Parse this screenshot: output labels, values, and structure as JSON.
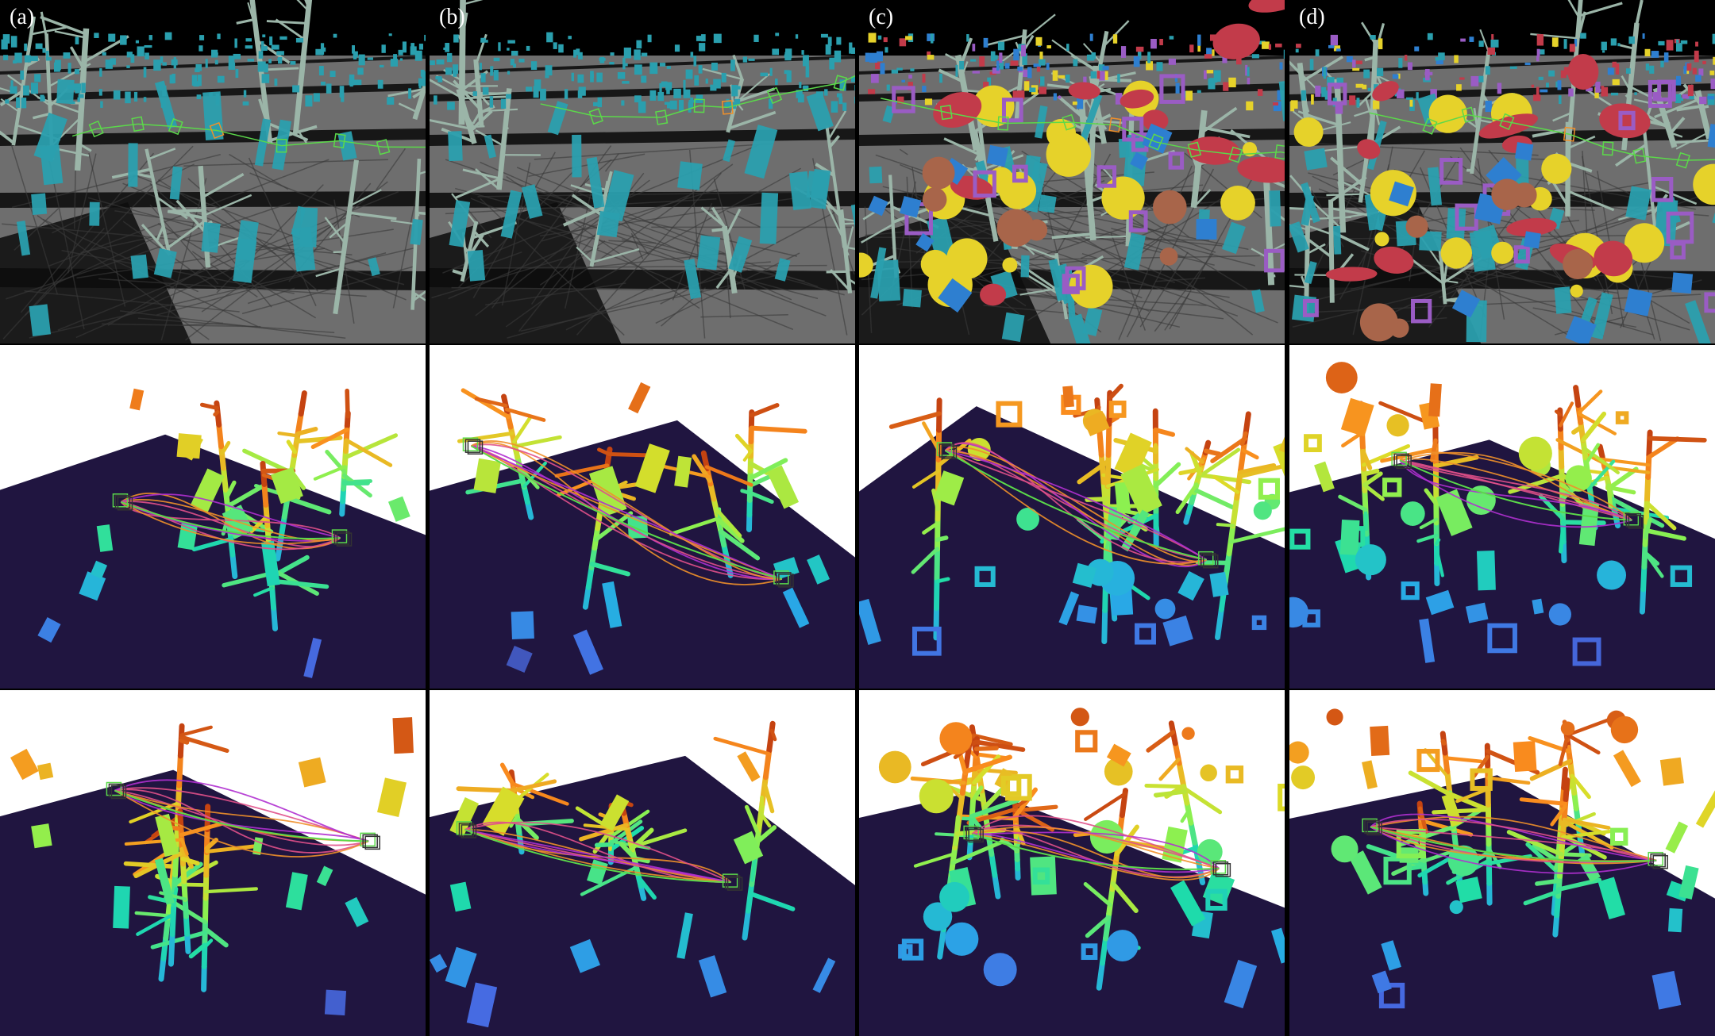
{
  "panels": [
    {
      "label": "(a)"
    },
    {
      "label": "(b)"
    },
    {
      "label": "(c)"
    },
    {
      "label": "(d)"
    }
  ],
  "colors": {
    "background": "#000000",
    "sim_floor": "#6e6e6e",
    "sim_gap": "#0d0d0d",
    "sim_sky": "#000000",
    "tree_branch": "#9bb5a8",
    "cyan_box": "#2a9fae",
    "red_obstacle": "#c23b4a",
    "yellow_sphere": "#e6d22a",
    "purple_frame": "#9a5cc4",
    "blue_box": "#2e7fd0",
    "brown_obstacle": "#a8654a",
    "green_path": "#5bd94a",
    "pc_ground": "#201540",
    "pc_white": "#ffffff",
    "traj_pink": "#e0508a",
    "traj_orange": "#f0902a",
    "traj_purple": "#b030d0"
  }
}
